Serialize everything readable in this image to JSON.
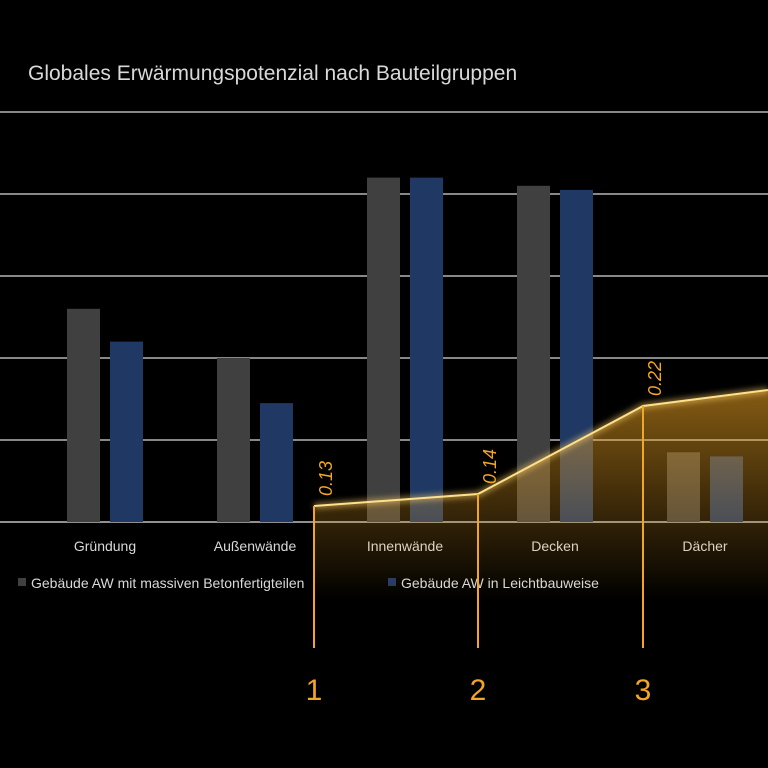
{
  "chart_data": {
    "type": "bar",
    "title": "Globales Erwärmungspotenzial nach Bauteilgruppen",
    "categories": [
      "Gründung",
      "Außenwände",
      "Innenwände",
      "Decken",
      "Dächer"
    ],
    "series": [
      {
        "name": "Gebäude AW mit massiven Betonfertigteilen",
        "color": "#404040",
        "values": [
          2.6,
          2.0,
          4.2,
          4.1,
          0.85
        ]
      },
      {
        "name": "Gebäude AW in Leichtbauweise",
        "color": "#1f3864",
        "values": [
          2.2,
          1.45,
          4.2,
          4.05,
          0.8
        ]
      }
    ],
    "ylim": [
      0,
      5
    ],
    "grid": true,
    "legend_position": "bottom",
    "overlay": {
      "color": "#f2a623",
      "points": [
        {
          "step": "1",
          "value": "0.13"
        },
        {
          "step": "2",
          "value": "0.14"
        },
        {
          "step": "3",
          "value": "0.22"
        }
      ]
    }
  }
}
